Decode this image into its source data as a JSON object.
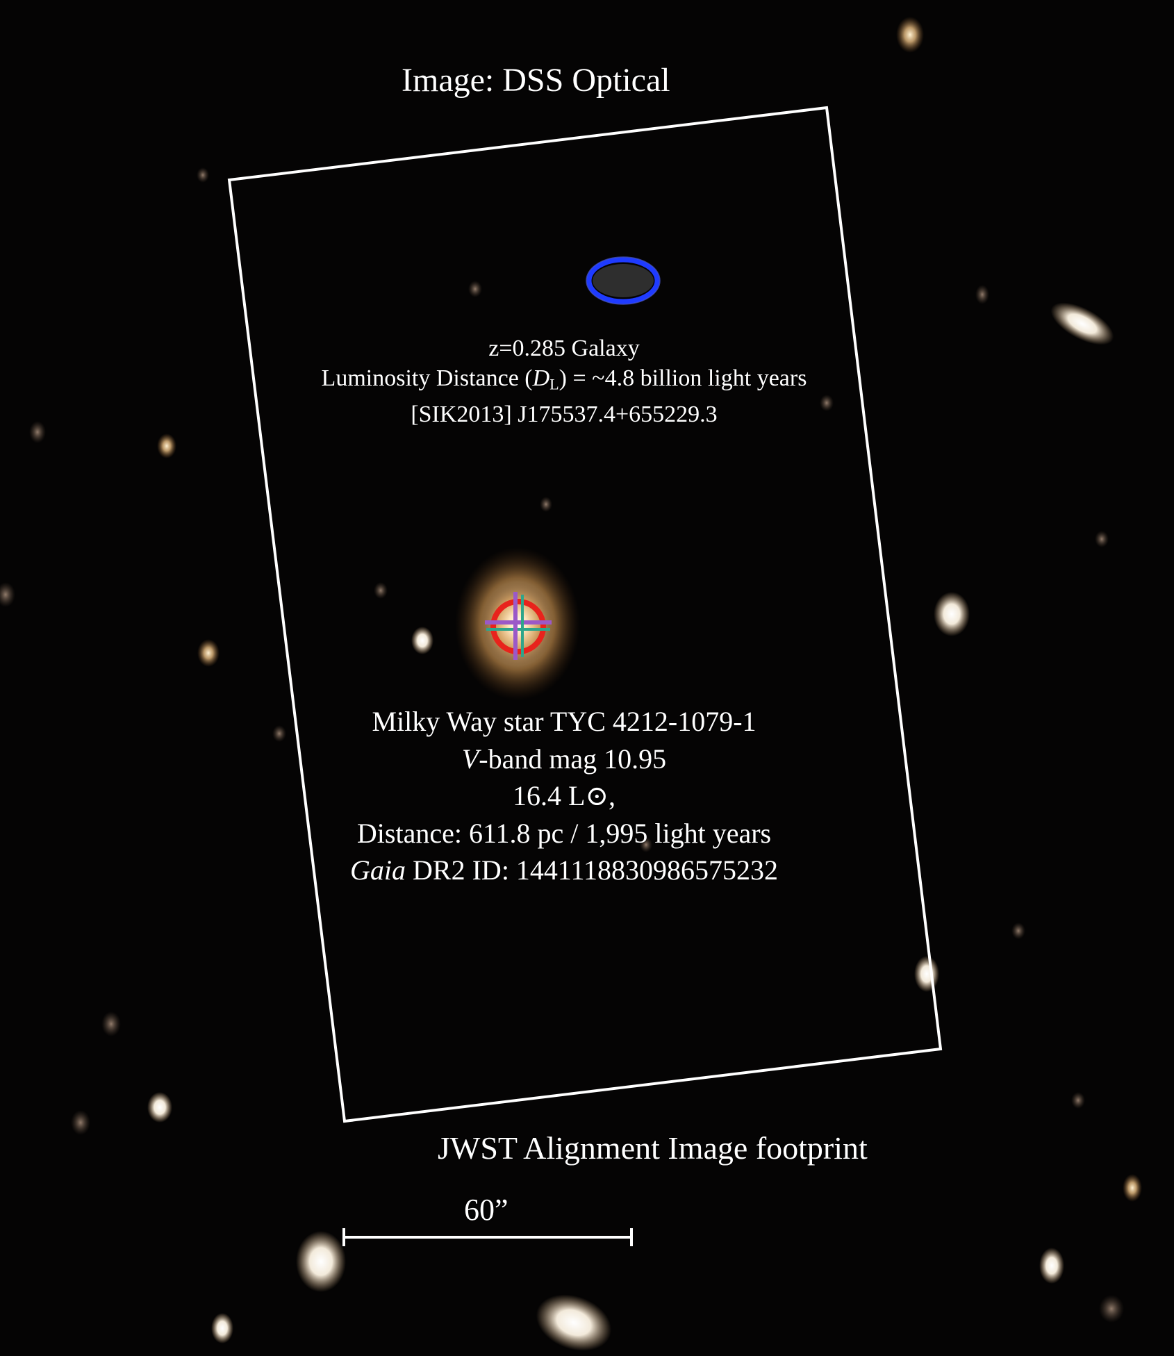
{
  "image": {
    "title": "Image: DSS Optical",
    "footprint_label": "JWST Alignment Image footprint",
    "scale_bar_label": "60”"
  },
  "galaxy": {
    "line1": "z=0.285 Galaxy",
    "line2_prefix": "Luminosity Distance (",
    "line2_symbol": "D",
    "line2_subscript": "L",
    "line2_suffix": ") = ~4.8 billion light years",
    "line3": "[SIK2013] J175537.4+655229.3",
    "marker_color": "#1f3bff"
  },
  "star": {
    "line1": "Milky Way star TYC 4212-1079-1",
    "line2_italic": "V",
    "line2_rest": "-band mag 10.95",
    "line3": "16.4 L⊙,",
    "line4": "Distance: 611.8 pc / 1,995 light years",
    "line5_italic": "Gaia",
    "line5_rest": " DR2 ID: 1441118830986575232",
    "circle_color": "#e8231c",
    "cross_colors": [
      "#9b59c8",
      "#2fa58a"
    ]
  },
  "colors": {
    "background": "#050404",
    "annotation": "#ffffff"
  }
}
